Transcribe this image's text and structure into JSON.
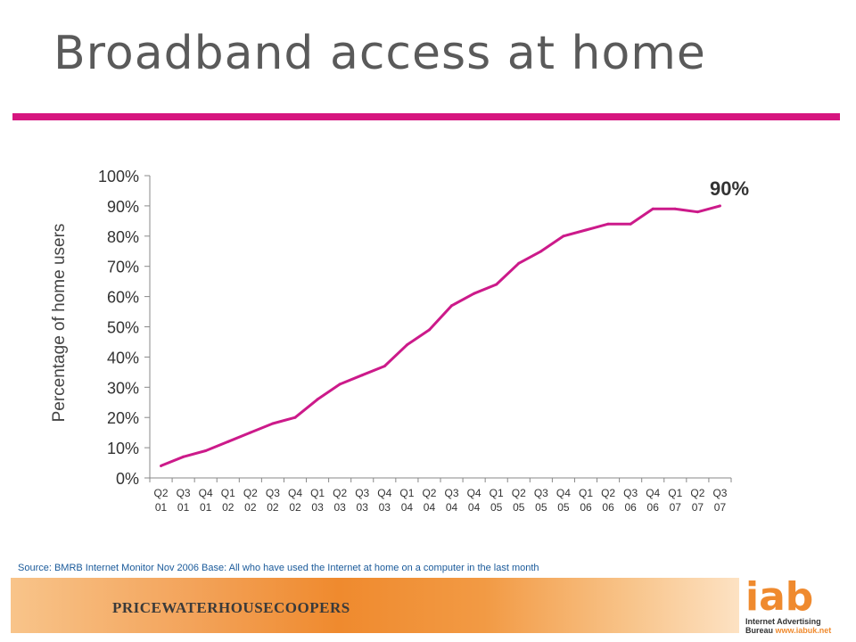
{
  "slide": {
    "title": "Broadband access at home",
    "source": "Source: BMRB Internet  Monitor Nov  2006  Base: All who have used the Internet  at home on a computer in the last month"
  },
  "logos": {
    "pwc": "PRICEWATERHOUSECOOPERS",
    "iab": "iab",
    "iab_line1": "Internet Advertising",
    "iab_line2": "Bureau",
    "iab_url": "www.iabuk.net"
  },
  "colors": {
    "accent": "#d6157f",
    "line": "#cc1a8a",
    "title": "#5a5a5a",
    "source": "#1a5a9a",
    "footer_orange": "#ef8a2e"
  },
  "chart_data": {
    "type": "line",
    "ylabel": "Percentage of home users",
    "ylim": [
      0,
      100
    ],
    "y_ticks": [
      "0%",
      "10%",
      "20%",
      "30%",
      "40%",
      "50%",
      "60%",
      "70%",
      "80%",
      "90%",
      "100%"
    ],
    "categories": [
      [
        "Q2",
        "01"
      ],
      [
        "Q3",
        "01"
      ],
      [
        "Q4",
        "01"
      ],
      [
        "Q1",
        "02"
      ],
      [
        "Q2",
        "02"
      ],
      [
        "Q3",
        "02"
      ],
      [
        "Q4",
        "02"
      ],
      [
        "Q1",
        "03"
      ],
      [
        "Q2",
        "03"
      ],
      [
        "Q3",
        "03"
      ],
      [
        "Q4",
        "03"
      ],
      [
        "Q1",
        "04"
      ],
      [
        "Q2",
        "04"
      ],
      [
        "Q3",
        "04"
      ],
      [
        "Q4",
        "04"
      ],
      [
        "Q1",
        "05"
      ],
      [
        "Q2",
        "05"
      ],
      [
        "Q3",
        "05"
      ],
      [
        "Q4",
        "05"
      ],
      [
        "Q1",
        "06"
      ],
      [
        "Q2",
        "06"
      ],
      [
        "Q3",
        "06"
      ],
      [
        "Q4",
        "06"
      ],
      [
        "Q1",
        "07"
      ],
      [
        "Q2",
        "07"
      ],
      [
        "Q3",
        "07"
      ]
    ],
    "values": [
      4,
      7,
      9,
      12,
      15,
      18,
      20,
      26,
      31,
      34,
      37,
      44,
      49,
      57,
      61,
      64,
      71,
      75,
      80,
      82,
      84,
      84,
      89,
      89,
      88,
      90
    ],
    "annotation": "90%",
    "grid": false,
    "legend": "none"
  }
}
